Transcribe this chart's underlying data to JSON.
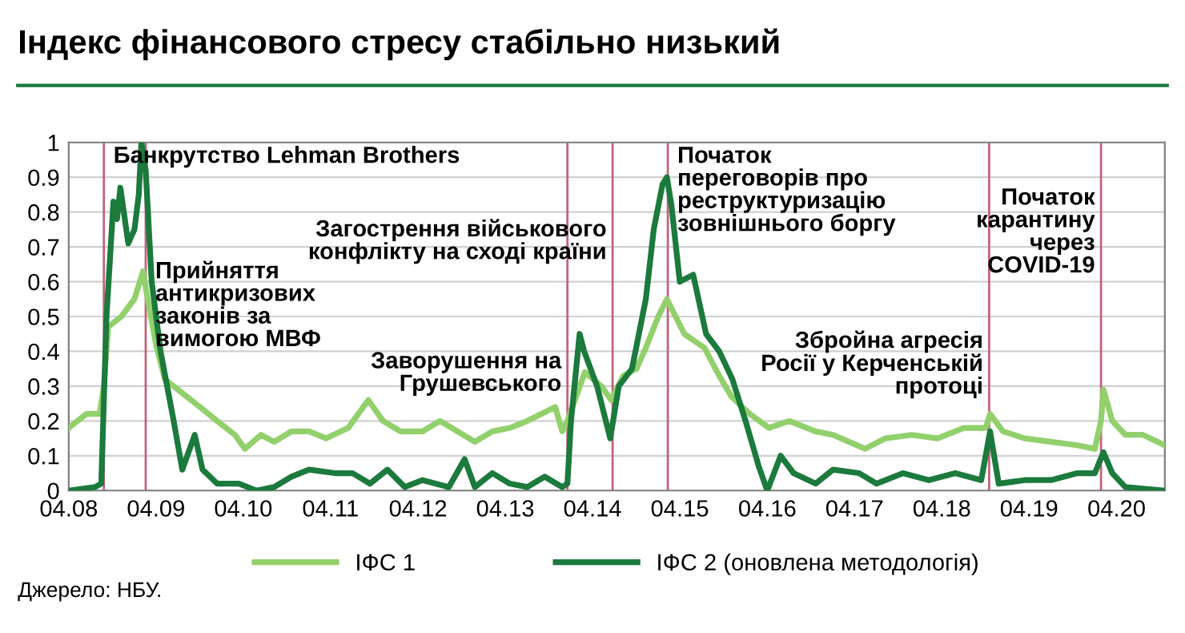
{
  "chart_data": {
    "type": "line",
    "title": "Індекс фінансового стресу стабільно низький",
    "annotations": [
      "Джерело: НБУ."
    ],
    "xlim": [
      "2008-04-01",
      "2020-10-20"
    ],
    "xticks": [
      {
        "value": "2008-04-01",
        "label": "04.08"
      },
      {
        "value": "2009-04-01",
        "label": "04.09"
      },
      {
        "value": "2010-04-01",
        "label": "04.10"
      },
      {
        "value": "2011-04-01",
        "label": "04.11"
      },
      {
        "value": "2012-04-01",
        "label": "04.12"
      },
      {
        "value": "2013-04-01",
        "label": "04.13"
      },
      {
        "value": "2014-04-01",
        "label": "04.14"
      },
      {
        "value": "2015-04-01",
        "label": "04.15"
      },
      {
        "value": "2016-04-01",
        "label": "04.16"
      },
      {
        "value": "2017-04-01",
        "label": "04.17"
      },
      {
        "value": "2018-04-01",
        "label": "04.18"
      },
      {
        "value": "2019-04-01",
        "label": "04.19"
      },
      {
        "value": "2020-04-01",
        "label": "04.20"
      }
    ],
    "ylim": [
      0,
      1
    ],
    "yticks": [
      0,
      0.1,
      0.2,
      0.3,
      0.4,
      0.5,
      0.6,
      0.7,
      0.8,
      0.9,
      1
    ],
    "grid": "y",
    "legend": "bottom",
    "line_style": "solid",
    "series": [
      {
        "name": "ІФС 1",
        "color": "#92d06c",
        "x": [
          "2008-04-01",
          "2008-06-14",
          "2008-08-08",
          "2008-08-26",
          "2008-09-13",
          "2008-11-07",
          "2009-01-01",
          "2009-02-06",
          "2009-02-25",
          "2009-04-01",
          "2009-05-08",
          "2009-07-20",
          "2009-10-02",
          "2009-12-13",
          "2010-02-25",
          "2010-04-08",
          "2010-06-14",
          "2010-08-08",
          "2010-10-20",
          "2011-01-01",
          "2011-03-14",
          "2011-06-14",
          "2011-09-06",
          "2011-11-07",
          "2012-01-19",
          "2012-04-20",
          "2012-07-02",
          "2012-09-13",
          "2012-11-25",
          "2013-02-06",
          "2013-04-20",
          "2013-07-02",
          "2013-10-27",
          "2013-11-25",
          "2013-12-17",
          "2014-02-28",
          "2014-05-08",
          "2014-06-18",
          "2014-08-08",
          "2014-10-02",
          "2014-11-10",
          "2015-01-01",
          "2015-02-06",
          "2015-04-20",
          "2015-07-13",
          "2015-09-13",
          "2015-11-03",
          "2016-01-19",
          "2016-04-08",
          "2016-07-02",
          "2016-10-20",
          "2017-01-01",
          "2017-05-15",
          "2017-08-08",
          "2017-11-25",
          "2018-03-14",
          "2018-07-02",
          "2018-10-02",
          "2018-10-20",
          "2018-12-13",
          "2019-03-14",
          "2019-07-02",
          "2019-10-20",
          "2020-01-01",
          "2020-01-27",
          "2020-02-06",
          "2020-03-14",
          "2020-05-08",
          "2020-07-20",
          "2020-10-20"
        ],
        "values": [
          0.18,
          0.22,
          0.22,
          0.3,
          0.47,
          0.5,
          0.55,
          0.63,
          0.55,
          0.42,
          0.32,
          0.28,
          0.24,
          0.2,
          0.16,
          0.12,
          0.16,
          0.14,
          0.17,
          0.17,
          0.15,
          0.18,
          0.26,
          0.2,
          0.17,
          0.17,
          0.2,
          0.17,
          0.14,
          0.17,
          0.18,
          0.2,
          0.24,
          0.17,
          0.2,
          0.34,
          0.3,
          0.26,
          0.33,
          0.35,
          0.41,
          0.5,
          0.55,
          0.45,
          0.41,
          0.33,
          0.27,
          0.22,
          0.18,
          0.2,
          0.17,
          0.16,
          0.12,
          0.15,
          0.16,
          0.15,
          0.18,
          0.18,
          0.22,
          0.17,
          0.15,
          0.14,
          0.13,
          0.12,
          0.2,
          0.29,
          0.2,
          0.16,
          0.16,
          0.13
        ]
      },
      {
        "name": "ІФС 2 (оновлена методологія)",
        "color": "#1b7a3c",
        "x": [
          "2008-04-01",
          "2008-07-20",
          "2008-08-15",
          "2008-09-06",
          "2008-10-05",
          "2008-10-20",
          "2008-11-03",
          "2008-12-06",
          "2009-01-01",
          "2009-01-19",
          "2009-01-30",
          "2009-02-17",
          "2009-03-14",
          "2009-04-20",
          "2009-06-14",
          "2009-07-20",
          "2009-09-10",
          "2009-10-13",
          "2009-12-13",
          "2010-03-14",
          "2010-05-27",
          "2010-08-08",
          "2010-10-20",
          "2011-01-01",
          "2011-04-20",
          "2011-07-02",
          "2011-09-13",
          "2011-11-25",
          "2012-02-06",
          "2012-04-20",
          "2012-08-08",
          "2012-10-13",
          "2012-11-25",
          "2013-02-06",
          "2013-04-20",
          "2013-07-02",
          "2013-09-13",
          "2013-11-25",
          "2013-12-17",
          "2014-01-01",
          "2014-02-06",
          "2014-02-25",
          "2014-04-20",
          "2014-06-14",
          "2014-07-20",
          "2014-09-13",
          "2014-11-10",
          "2014-12-13",
          "2015-01-19",
          "2015-02-06",
          "2015-02-25",
          "2015-04-01",
          "2015-05-27",
          "2015-07-20",
          "2015-09-13",
          "2015-11-07",
          "2016-01-01",
          "2016-02-25",
          "2016-04-01",
          "2016-05-27",
          "2016-07-20",
          "2016-10-20",
          "2017-01-01",
          "2017-04-20",
          "2017-07-02",
          "2017-10-20",
          "2018-02-06",
          "2018-05-27",
          "2018-09-13",
          "2018-10-20",
          "2018-11-25",
          "2019-03-14",
          "2019-07-02",
          "2019-10-20",
          "2020-01-01",
          "2020-02-06",
          "2020-03-14",
          "2020-05-08",
          "2020-10-20"
        ],
        "values": [
          0.0,
          0.01,
          0.02,
          0.5,
          0.83,
          0.78,
          0.87,
          0.71,
          0.75,
          0.85,
          1.0,
          0.92,
          0.6,
          0.4,
          0.2,
          0.06,
          0.16,
          0.06,
          0.02,
          0.02,
          0.0,
          0.01,
          0.04,
          0.06,
          0.05,
          0.05,
          0.02,
          0.06,
          0.01,
          0.03,
          0.01,
          0.09,
          0.01,
          0.05,
          0.02,
          0.01,
          0.04,
          0.01,
          0.02,
          0.2,
          0.45,
          0.4,
          0.3,
          0.15,
          0.3,
          0.35,
          0.55,
          0.75,
          0.88,
          0.9,
          0.82,
          0.6,
          0.62,
          0.45,
          0.4,
          0.32,
          0.2,
          0.07,
          0.0,
          0.1,
          0.05,
          0.02,
          0.06,
          0.05,
          0.02,
          0.05,
          0.03,
          0.05,
          0.03,
          0.17,
          0.02,
          0.03,
          0.03,
          0.05,
          0.05,
          0.11,
          0.05,
          0.01,
          0.0
        ]
      }
    ],
    "ref_lines": [
      {
        "axis": "x",
        "value": "2008-08-26",
        "label": "Банкрутство Lehman Brothers",
        "color": "#c0647c"
      },
      {
        "axis": "x",
        "value": "2009-02-17",
        "label": "Прийняття\nантикризових\nзаконів за\nвимогою МВФ",
        "color": "#c0647c"
      },
      {
        "axis": "x",
        "value": "2013-12-17",
        "label": "Заворушення на\nГрушевського",
        "color": "#c0647c"
      },
      {
        "axis": "x",
        "value": "2014-06-24",
        "label": "Загострення військового\nконфлікту на сході країни",
        "color": "#c0647c"
      },
      {
        "axis": "x",
        "value": "2015-02-10",
        "label": "Початок\nпереговорів про\nреструктуризацію\nзовнішнього боргу",
        "color": "#c0647c"
      },
      {
        "axis": "x",
        "value": "2018-10-16",
        "label": "Збройна агресія\nРосії у Керченській\nпротоці",
        "color": "#c0647c"
      },
      {
        "axis": "x",
        "value": "2020-01-27",
        "label": "Початок\nкарантину\nчерез\nCOVID-19",
        "color": "#c0647c"
      }
    ]
  }
}
